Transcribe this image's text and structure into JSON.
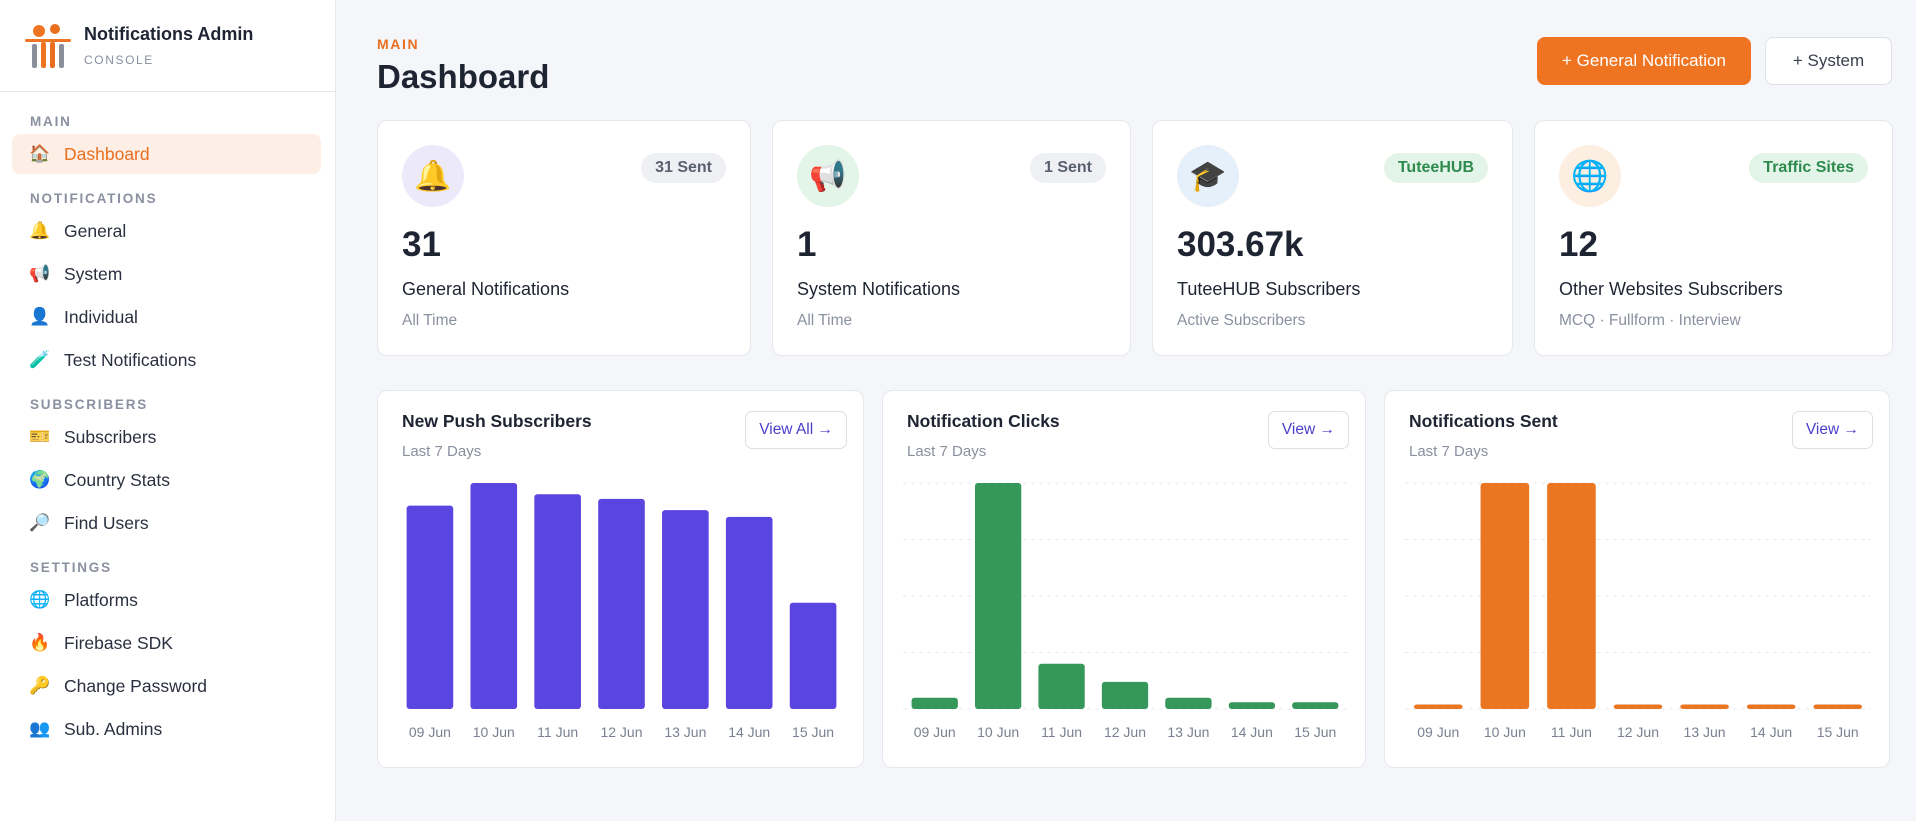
{
  "brand": {
    "title": "Notifications Admin",
    "subtitle": "CONSOLE"
  },
  "sidebar": {
    "sections": [
      {
        "label": "MAIN",
        "items": [
          {
            "label": "Dashboard",
            "icon": "house-icon",
            "glyph": "🏠",
            "active": true
          }
        ]
      },
      {
        "label": "NOTIFICATIONS",
        "items": [
          {
            "label": "General",
            "icon": "bell-icon",
            "glyph": "🔔"
          },
          {
            "label": "System",
            "icon": "megaphone-icon",
            "glyph": "📢"
          },
          {
            "label": "Individual",
            "icon": "user-icon",
            "glyph": "👤"
          },
          {
            "label": "Test Notifications",
            "icon": "test-tube-icon",
            "glyph": "🧪"
          }
        ]
      },
      {
        "label": "SUBSCRIBERS",
        "items": [
          {
            "label": "Subscribers",
            "icon": "id-card-icon",
            "glyph": "🎫"
          },
          {
            "label": "Country Stats",
            "icon": "globe-icon",
            "glyph": "🌍"
          },
          {
            "label": "Find Users",
            "icon": "magnifier-icon",
            "glyph": "🔎"
          }
        ]
      },
      {
        "label": "SETTINGS",
        "items": [
          {
            "label": "Platforms",
            "icon": "globe-grid-icon",
            "glyph": "🌐"
          },
          {
            "label": "Firebase SDK",
            "icon": "fire-icon",
            "glyph": "🔥"
          },
          {
            "label": "Change Password",
            "icon": "key-icon",
            "glyph": "🔑"
          },
          {
            "label": "Sub. Admins",
            "icon": "users-icon",
            "glyph": "👥"
          }
        ]
      }
    ]
  },
  "header": {
    "crumb": "MAIN",
    "title": "Dashboard",
    "primary_button": "+ General Notification",
    "secondary_button": "+ System"
  },
  "stats": [
    {
      "icon": "bell-icon",
      "glyph": "🔔",
      "icon_bg": "#ece9fb",
      "badge": "31 Sent",
      "badge_style": "gray",
      "value": "31",
      "label": "General Notifications",
      "sub": "All Time"
    },
    {
      "icon": "megaphone-icon",
      "glyph": "📢",
      "icon_bg": "#e2f5e8",
      "badge": "1 Sent",
      "badge_style": "gray",
      "value": "1",
      "label": "System Notifications",
      "sub": "All Time"
    },
    {
      "icon": "graduation-cap-icon",
      "glyph": "🎓",
      "icon_bg": "#e6f0fb",
      "badge": "TuteeHUB",
      "badge_style": "green",
      "value": "303.67k",
      "label": "TuteeHUB Subscribers",
      "sub": "Active Subscribers"
    },
    {
      "icon": "globe-grid-icon",
      "glyph": "🌐",
      "icon_bg": "#fdeee2",
      "badge": "Traffic Sites",
      "badge_style": "green",
      "value": "12",
      "label": "Other Websites Subscribers",
      "sub": "MCQ · Fullform · Interview"
    }
  ],
  "chart_data": [
    {
      "type": "bar",
      "title": "New Push Subscribers",
      "subtitle": "Last 7 Days",
      "button": "View All →",
      "color": "#5b45e0",
      "categories": [
        "09 Jun",
        "10 Jun",
        "11 Jun",
        "12 Jun",
        "13 Jun",
        "14 Jun",
        "15 Jun"
      ],
      "values": [
        90,
        100,
        95,
        93,
        88,
        85,
        47
      ],
      "ylim": [
        0,
        100
      ],
      "grid": false
    },
    {
      "type": "bar",
      "title": "Notification Clicks",
      "subtitle": "Last 7 Days",
      "button": "View →",
      "color": "#35985a",
      "categories": [
        "09 Jun",
        "10 Jun",
        "11 Jun",
        "12 Jun",
        "13 Jun",
        "14 Jun",
        "15 Jun"
      ],
      "values": [
        5,
        100,
        20,
        12,
        5,
        3,
        3
      ],
      "ylim": [
        0,
        100
      ],
      "grid": true
    },
    {
      "type": "bar",
      "title": "Notifications Sent",
      "subtitle": "Last 7 Days",
      "button": "View →",
      "color": "#ea7622",
      "categories": [
        "09 Jun",
        "10 Jun",
        "11 Jun",
        "12 Jun",
        "13 Jun",
        "14 Jun",
        "15 Jun"
      ],
      "values": [
        2,
        100,
        100,
        2,
        2,
        2,
        2
      ],
      "ylim": [
        0,
        100
      ],
      "grid": true
    }
  ]
}
